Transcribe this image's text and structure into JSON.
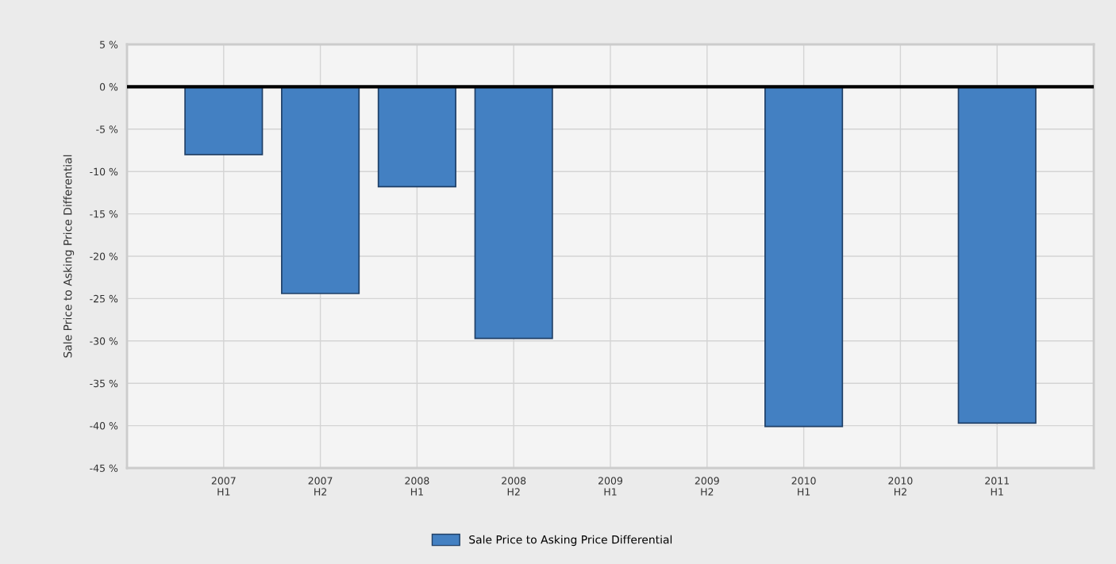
{
  "chart_data": {
    "type": "bar",
    "ylabel": "Sale Price to Asking Price Differential",
    "categories": [
      "2007\nH1",
      "2007\nH2",
      "2008\nH1",
      "2008\nH2",
      "2009\nH1",
      "2009\nH2",
      "2010\nH1",
      "2010\nH2",
      "2011\nH1"
    ],
    "series": [
      {
        "name": "Sale Price to Asking Price Differential",
        "color": "#4380c2",
        "values": [
          -8.0,
          -24.4,
          -11.8,
          -29.7,
          null,
          null,
          -40.1,
          null,
          -39.7
        ]
      }
    ],
    "ylim": [
      -45,
      5
    ],
    "yticks": [
      {
        "value": 5,
        "label": "5 %"
      },
      {
        "value": 0,
        "label": "0 %"
      },
      {
        "value": -5,
        "label": "-5 %"
      },
      {
        "value": -10,
        "label": "-10 %"
      },
      {
        "value": -15,
        "label": "-15 %"
      },
      {
        "value": -20,
        "label": "-20 %"
      },
      {
        "value": -25,
        "label": "-25 %"
      },
      {
        "value": -30,
        "label": "-30 %"
      },
      {
        "value": -35,
        "label": "-35 %"
      },
      {
        "value": -40,
        "label": "-40 %"
      },
      {
        "value": -45,
        "label": "-45 %"
      }
    ],
    "ref_lines": [
      {
        "axis": "y",
        "value": 0,
        "color": "#000000"
      }
    ],
    "grid": true,
    "legend": "bottom"
  }
}
